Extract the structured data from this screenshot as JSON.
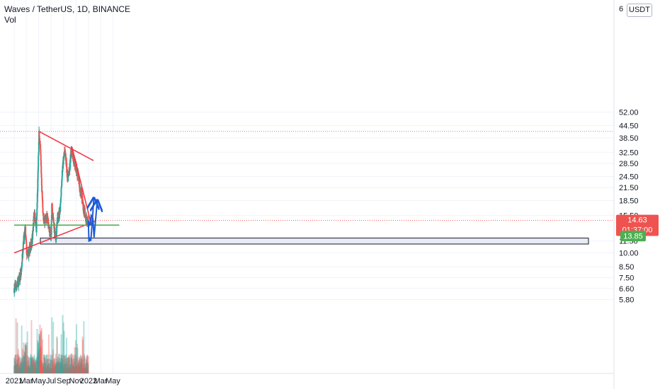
{
  "header": {
    "title": "Waves / TetherUS, 1D, BINANCE",
    "volume_label": "Vol"
  },
  "currency_button": "USDT",
  "top_tick": "6",
  "price_tags": {
    "current_price": "14.63",
    "countdown": "01:37:00",
    "horizontal_level": "13.85"
  },
  "colors": {
    "up": "#26a69a",
    "down": "#ef5350",
    "trendline": "#f23645",
    "support_line": "#4caf50",
    "projection": "#1e5bd6",
    "zone_fill": "#e8eaf6"
  },
  "chart_data": {
    "type": "candlestick",
    "title": "Waves / TetherUS, 1D, BINANCE",
    "y_scale": "log",
    "y_ticks": [
      52.0,
      44.5,
      38.5,
      32.5,
      28.5,
      24.5,
      21.5,
      18.5,
      15.5,
      11.5,
      10.0,
      8.5,
      7.5,
      6.6,
      5.8
    ],
    "y_tick_labels": [
      "52.00",
      "44.50",
      "38.50",
      "32.50",
      "28.50",
      "24.50",
      "21.50",
      "18.50",
      "15.50",
      "11.50",
      "10.00",
      "8.50",
      "7.50",
      "6.60",
      "5.80"
    ],
    "x_tick_labels": [
      "2021",
      "Mar",
      "May",
      "Jul",
      "Sep",
      "Nov",
      "2022",
      "Mar",
      "May"
    ],
    "grid": true,
    "last_price": 14.63,
    "horizontal_level": 13.85,
    "prior_high": 41.5,
    "zone": [
      11.1,
      11.9
    ],
    "price_path_2021": [
      [
        "2021-01-01",
        6.6
      ],
      [
        "2021-01-20",
        7.0
      ],
      [
        "2021-02-05",
        8.0
      ],
      [
        "2021-02-15",
        11.5
      ],
      [
        "2021-02-25",
        13.0
      ],
      [
        "2021-03-05",
        9.5
      ],
      [
        "2021-03-20",
        10.5
      ],
      [
        "2021-04-01",
        12.0
      ],
      [
        "2021-04-10",
        16.5
      ],
      [
        "2021-04-20",
        13.0
      ],
      [
        "2021-04-28",
        25.0
      ],
      [
        "2021-05-03",
        40.0
      ],
      [
        "2021-05-10",
        33.0
      ],
      [
        "2021-05-18",
        20.0
      ],
      [
        "2021-05-25",
        14.5
      ],
      [
        "2021-06-10",
        15.5
      ],
      [
        "2021-06-20",
        13.5
      ],
      [
        "2021-07-01",
        11.8
      ],
      [
        "2021-07-05",
        17.5
      ],
      [
        "2021-07-15",
        13.5
      ],
      [
        "2021-07-25",
        12.0
      ],
      [
        "2021-08-01",
        14.5
      ],
      [
        "2021-08-15",
        17.0
      ],
      [
        "2021-08-25",
        26.0
      ],
      [
        "2021-09-05",
        33.0
      ],
      [
        "2021-09-12",
        30.0
      ],
      [
        "2021-09-20",
        24.0
      ],
      [
        "2021-09-30",
        26.0
      ],
      [
        "2021-10-05",
        31.0
      ],
      [
        "2021-10-12",
        33.5
      ],
      [
        "2021-10-20",
        29.0
      ],
      [
        "2021-11-01",
        27.0
      ],
      [
        "2021-11-10",
        25.0
      ],
      [
        "2021-11-20",
        21.0
      ],
      [
        "2021-11-28",
        20.0
      ],
      [
        "2021-12-05",
        17.5
      ],
      [
        "2021-12-10",
        16.5
      ],
      [
        "2021-12-20",
        15.0
      ],
      [
        "2021-12-31",
        14.63
      ]
    ],
    "trendlines": [
      {
        "name": "upper-resistance",
        "color": "#f23645",
        "points": [
          [
            "2021-05-03",
            41.5
          ],
          [
            "2022-01-25",
            29.5
          ]
        ]
      },
      {
        "name": "descending-resistance",
        "color": "#f23645",
        "points": [
          [
            "2021-10-12",
            34.5
          ],
          [
            "2022-01-15",
            13.9
          ]
        ]
      },
      {
        "name": "rising-support",
        "color": "#f23645",
        "points": [
          [
            "2021-01-01",
            10.0
          ],
          [
            "2022-02-03",
            14.5
          ]
        ]
      },
      {
        "name": "support-level",
        "color": "#4caf50",
        "points": [
          [
            "2021-01-01",
            13.85
          ],
          [
            "2022-06-01",
            13.85
          ]
        ]
      }
    ],
    "projections": [
      {
        "name": "projection-1",
        "color": "#1e5bd6",
        "points": [
          [
            "2021-12-31",
            14.63
          ],
          [
            "2022-01-03",
            11.4
          ],
          [
            "2022-01-08",
            12.0
          ],
          [
            "2022-01-12",
            11.5
          ],
          [
            "2022-01-20",
            14.8
          ],
          [
            "2022-01-27",
            19.0
          ]
        ]
      },
      {
        "name": "projection-2",
        "color": "#1e5bd6",
        "points": [
          [
            "2022-01-01",
            13.5
          ],
          [
            "2022-01-05",
            14.2
          ],
          [
            "2022-01-09",
            13.8
          ],
          [
            "2022-01-14",
            15.5
          ],
          [
            "2022-01-22",
            15.0
          ],
          [
            "2022-01-28",
            12.0
          ],
          [
            "2022-02-13",
            18.5
          ]
        ]
      }
    ]
  }
}
